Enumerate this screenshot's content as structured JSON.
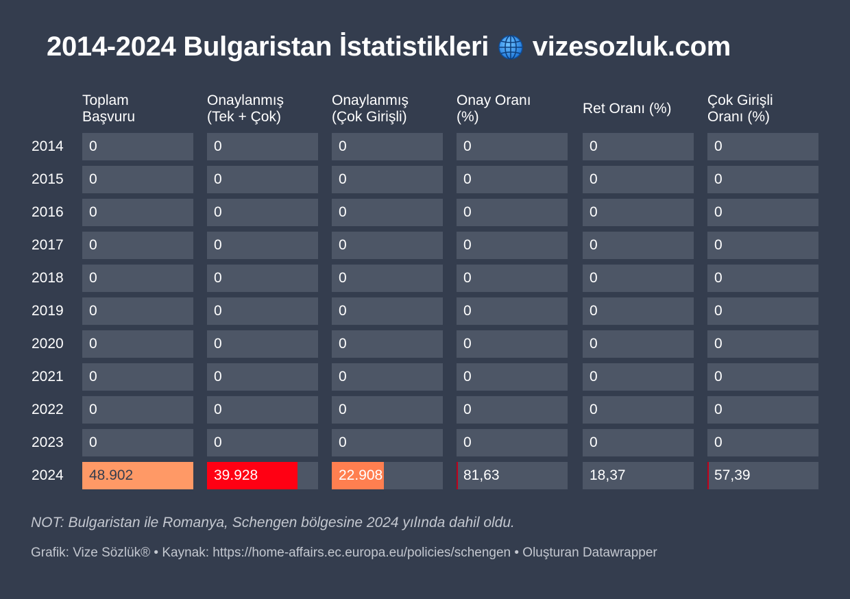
{
  "title": {
    "text_before": "2014-2024 Bulgaristan İstatistikleri",
    "icon": "globe-icon",
    "text_after": "vizesozluk.com"
  },
  "colors": {
    "background": "#343d4e",
    "cell": "#4d5666",
    "orange": "#ff9966",
    "red": "#ff0013",
    "salmon": "#ff7f50",
    "accent_line": "#c0001a"
  },
  "chart_data": {
    "type": "table",
    "columns": [
      "Toplam\nBaşvuru",
      "Onaylanmış\n(Tek + Çok)",
      "Onaylanmış\n(Çok Girişli)",
      "Onay Oranı\n(%)",
      "Ret Oranı (%)",
      "Çok Girişli\nOranı (%)"
    ],
    "rows": [
      {
        "year": "2014",
        "values": [
          "0",
          "0",
          "0",
          "0",
          "0",
          "0"
        ]
      },
      {
        "year": "2015",
        "values": [
          "0",
          "0",
          "0",
          "0",
          "0",
          "0"
        ]
      },
      {
        "year": "2016",
        "values": [
          "0",
          "0",
          "0",
          "0",
          "0",
          "0"
        ]
      },
      {
        "year": "2017",
        "values": [
          "0",
          "0",
          "0",
          "0",
          "0",
          "0"
        ]
      },
      {
        "year": "2018",
        "values": [
          "0",
          "0",
          "0",
          "0",
          "0",
          "0"
        ]
      },
      {
        "year": "2019",
        "values": [
          "0",
          "0",
          "0",
          "0",
          "0",
          "0"
        ]
      },
      {
        "year": "2020",
        "values": [
          "0",
          "0",
          "0",
          "0",
          "0",
          "0"
        ]
      },
      {
        "year": "2021",
        "values": [
          "0",
          "0",
          "0",
          "0",
          "0",
          "0"
        ]
      },
      {
        "year": "2022",
        "values": [
          "0",
          "0",
          "0",
          "0",
          "0",
          "0"
        ]
      },
      {
        "year": "2023",
        "values": [
          "0",
          "0",
          "0",
          "0",
          "0",
          "0"
        ]
      },
      {
        "year": "2024",
        "values": [
          "48.902",
          "39.928",
          "22.908",
          "81,63",
          "18,37",
          "57,39"
        ]
      }
    ],
    "bar_values": {
      "2024": [
        48902,
        39928,
        22908,
        81.63,
        18.37,
        57.39
      ]
    },
    "bar_fill_fraction_2024": [
      1.0,
      0.8165,
      0.4684,
      0.0,
      0.0,
      0.0
    ]
  },
  "note": "NOT: Bulgaristan ile Romanya, Schengen bölgesine 2024 yılında dahil oldu.",
  "footer": "Grafik: Vize Sözlük® • Kaynak: https://home-affairs.ec.europa.eu/policies/schengen • Oluşturan Datawrapper"
}
